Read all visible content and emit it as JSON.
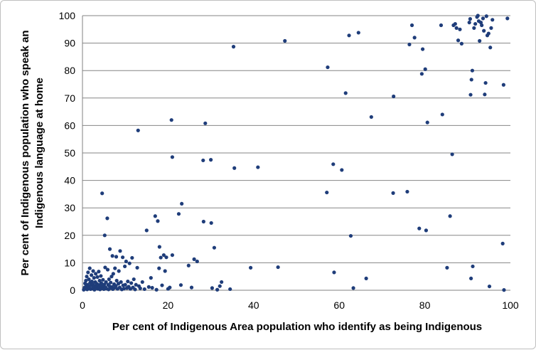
{
  "chart_data": {
    "type": "scatter",
    "title": "",
    "xlabel": "Per cent of Indigenous Area population who identify as being Indigenous",
    "ylabel_line1": "Per cent of Indigenous population who speak an",
    "ylabel_line2": "Indigenous language at home",
    "xlim": [
      0,
      100
    ],
    "ylim": [
      0,
      100
    ],
    "x_ticks": [
      0,
      20,
      40,
      60,
      80,
      100
    ],
    "y_ticks": [
      0,
      10,
      20,
      30,
      40,
      50,
      60,
      70,
      80,
      90,
      100
    ],
    "grid": "horizontal",
    "legend": "none",
    "marker_color": "#1f3d7a",
    "points": [
      [
        0.3,
        0.2
      ],
      [
        0.5,
        1.0
      ],
      [
        0.6,
        2.5
      ],
      [
        0.7,
        0.5
      ],
      [
        0.8,
        3.5
      ],
      [
        0.9,
        1.5
      ],
      [
        1.0,
        5.0
      ],
      [
        1.1,
        0.3
      ],
      [
        1.2,
        2.0
      ],
      [
        1.3,
        6.5
      ],
      [
        1.4,
        1.2
      ],
      [
        1.5,
        4.0
      ],
      [
        1.6,
        0.8
      ],
      [
        1.7,
        8.0
      ],
      [
        1.8,
        2.8
      ],
      [
        1.9,
        0.4
      ],
      [
        2.0,
        1.8
      ],
      [
        2.1,
        5.5
      ],
      [
        2.2,
        3.2
      ],
      [
        2.3,
        0.6
      ],
      [
        2.4,
        2.2
      ],
      [
        2.5,
        7.0
      ],
      [
        2.6,
        1.0
      ],
      [
        2.7,
        4.5
      ],
      [
        2.8,
        0.2
      ],
      [
        2.9,
        1.6
      ],
      [
        3.0,
        3.0
      ],
      [
        3.1,
        6.0
      ],
      [
        3.2,
        0.9
      ],
      [
        3.3,
        2.4
      ],
      [
        3.4,
        1.3
      ],
      [
        3.5,
        4.8
      ],
      [
        3.6,
        0.5
      ],
      [
        3.7,
        2.0
      ],
      [
        3.8,
        6.8
      ],
      [
        3.9,
        1.1
      ],
      [
        4.0,
        3.5
      ],
      [
        4.1,
        0.3
      ],
      [
        4.2,
        1.9
      ],
      [
        4.3,
        5.2
      ],
      [
        4.4,
        2.6
      ],
      [
        4.5,
        0.7
      ],
      [
        4.6,
        35.3
      ],
      [
        4.7,
        1.4
      ],
      [
        4.8,
        3.8
      ],
      [
        5.0,
        0.4
      ],
      [
        5.1,
        2.1
      ],
      [
        5.2,
        20.0
      ],
      [
        5.3,
        8.3
      ],
      [
        5.4,
        1.0
      ],
      [
        5.5,
        3.0
      ],
      [
        5.6,
        0.6
      ],
      [
        5.8,
        26.2
      ],
      [
        5.9,
        7.5
      ],
      [
        6.0,
        2.0
      ],
      [
        6.1,
        0.3
      ],
      [
        6.2,
        4.0
      ],
      [
        6.3,
        1.5
      ],
      [
        6.4,
        15.0
      ],
      [
        6.5,
        0.8
      ],
      [
        6.6,
        2.8
      ],
      [
        6.8,
        5.0
      ],
      [
        6.9,
        1.2
      ],
      [
        7.0,
        12.5
      ],
      [
        7.1,
        0.4
      ],
      [
        7.2,
        6.0
      ],
      [
        7.4,
        2.2
      ],
      [
        7.5,
        0.9
      ],
      [
        7.6,
        8.0
      ],
      [
        7.8,
        1.6
      ],
      [
        7.9,
        12.2
      ],
      [
        8.0,
        3.5
      ],
      [
        8.2,
        0.5
      ],
      [
        8.4,
        2.4
      ],
      [
        8.5,
        7.0
      ],
      [
        8.7,
        1.0
      ],
      [
        8.8,
        14.3
      ],
      [
        9.0,
        3.0
      ],
      [
        9.2,
        0.3
      ],
      [
        9.4,
        12.0
      ],
      [
        9.5,
        1.8
      ],
      [
        9.7,
        0.6
      ],
      [
        9.9,
        8.7
      ],
      [
        10.0,
        2.0
      ],
      [
        10.2,
        10.5
      ],
      [
        10.4,
        0.8
      ],
      [
        10.6,
        3.2
      ],
      [
        10.8,
        1.3
      ],
      [
        11.0,
        9.8
      ],
      [
        11.2,
        0.5
      ],
      [
        11.4,
        2.6
      ],
      [
        11.6,
        11.8
      ],
      [
        11.8,
        1.0
      ],
      [
        12.0,
        4.0
      ],
      [
        12.3,
        0.3
      ],
      [
        12.5,
        2.0
      ],
      [
        12.8,
        8.2
      ],
      [
        13.0,
        58.2
      ],
      [
        13.2,
        1.5
      ],
      [
        13.5,
        0.7
      ],
      [
        14.0,
        3.0
      ],
      [
        14.5,
        0.4
      ],
      [
        15.0,
        21.8
      ],
      [
        15.5,
        1.2
      ],
      [
        16.0,
        4.5
      ],
      [
        16.3,
        0.9
      ],
      [
        17.0,
        27.0
      ],
      [
        17.3,
        0.2
      ],
      [
        17.6,
        25.2
      ],
      [
        17.9,
        8.0
      ],
      [
        18.0,
        15.8
      ],
      [
        18.3,
        11.9
      ],
      [
        18.6,
        1.8
      ],
      [
        19.0,
        12.8
      ],
      [
        19.3,
        7.0
      ],
      [
        19.6,
        12.0
      ],
      [
        20.0,
        0.5
      ],
      [
        20.4,
        1.0
      ],
      [
        20.8,
        62.0
      ],
      [
        21.0,
        48.5
      ],
      [
        21.0,
        12.8
      ],
      [
        22.5,
        27.8
      ],
      [
        23.2,
        31.5
      ],
      [
        23.0,
        1.9
      ],
      [
        24.8,
        9.0
      ],
      [
        25.5,
        1.0
      ],
      [
        26.1,
        11.3
      ],
      [
        26.8,
        10.5
      ],
      [
        28.2,
        47.3
      ],
      [
        28.3,
        25.0
      ],
      [
        28.7,
        60.8
      ],
      [
        30.0,
        47.5
      ],
      [
        30.1,
        24.5
      ],
      [
        30.3,
        0.8
      ],
      [
        30.8,
        15.5
      ],
      [
        31.5,
        0.2
      ],
      [
        32.1,
        1.5
      ],
      [
        32.5,
        3.0
      ],
      [
        34.5,
        0.4
      ],
      [
        35.3,
        88.7
      ],
      [
        35.5,
        44.5
      ],
      [
        39.3,
        8.2
      ],
      [
        41.0,
        44.8
      ],
      [
        45.7,
        8.4
      ],
      [
        47.3,
        90.8
      ],
      [
        57.1,
        35.6
      ],
      [
        57.3,
        81.2
      ],
      [
        58.6,
        45.9
      ],
      [
        58.8,
        6.5
      ],
      [
        60.6,
        43.8
      ],
      [
        61.5,
        71.8
      ],
      [
        62.3,
        92.8
      ],
      [
        62.7,
        19.8
      ],
      [
        63.3,
        0.8
      ],
      [
        64.5,
        93.8
      ],
      [
        66.3,
        4.3
      ],
      [
        67.5,
        63.1
      ],
      [
        72.6,
        35.4
      ],
      [
        72.7,
        70.6
      ],
      [
        75.9,
        35.9
      ],
      [
        76.4,
        89.5
      ],
      [
        77.0,
        96.5
      ],
      [
        77.6,
        92.0
      ],
      [
        78.7,
        22.5
      ],
      [
        79.3,
        78.8
      ],
      [
        79.5,
        87.8
      ],
      [
        80.1,
        80.5
      ],
      [
        80.3,
        21.8
      ],
      [
        80.6,
        61.1
      ],
      [
        83.8,
        96.5
      ],
      [
        84.1,
        64.0
      ],
      [
        85.2,
        8.2
      ],
      [
        85.9,
        27.0
      ],
      [
        86.4,
        49.5
      ],
      [
        86.7,
        96.5
      ],
      [
        87.1,
        97.0
      ],
      [
        87.4,
        95.5
      ],
      [
        87.8,
        91.0
      ],
      [
        88.2,
        95.0
      ],
      [
        88.6,
        89.8
      ],
      [
        90.4,
        97.5
      ],
      [
        90.6,
        98.8
      ],
      [
        90.7,
        71.2
      ],
      [
        90.8,
        4.3
      ],
      [
        90.9,
        76.7
      ],
      [
        91.1,
        80.0
      ],
      [
        91.2,
        8.7
      ],
      [
        91.5,
        95.5
      ],
      [
        91.8,
        97.0
      ],
      [
        92.2,
        99.5
      ],
      [
        92.4,
        100.0
      ],
      [
        92.6,
        98.0
      ],
      [
        92.8,
        90.8
      ],
      [
        93.1,
        97.5
      ],
      [
        93.3,
        96.5
      ],
      [
        93.6,
        99.0
      ],
      [
        93.8,
        94.5
      ],
      [
        94.0,
        71.3
      ],
      [
        94.2,
        75.5
      ],
      [
        94.4,
        99.8
      ],
      [
        94.6,
        92.8
      ],
      [
        94.9,
        93.5
      ],
      [
        95.1,
        1.4
      ],
      [
        95.3,
        88.4
      ],
      [
        95.5,
        95.5
      ],
      [
        95.8,
        98.5
      ],
      [
        98.2,
        17.0
      ],
      [
        98.4,
        74.8
      ],
      [
        98.5,
        0.1
      ],
      [
        99.3,
        99.0
      ]
    ]
  }
}
